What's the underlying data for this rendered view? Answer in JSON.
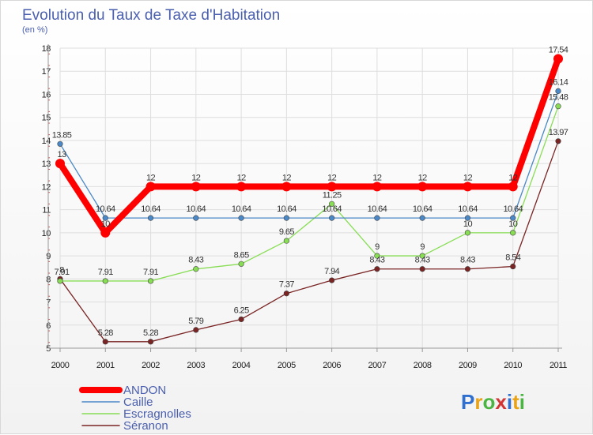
{
  "chart_data": {
    "type": "line",
    "title": "Evolution du Taux de Taxe d'Habitation",
    "subtitle": "(en %)",
    "xlabel": "",
    "ylabel": "",
    "ylim": [
      5,
      18
    ],
    "grid": true,
    "legend_position": "bottom-left",
    "categories": [
      "2000",
      "2001",
      "2002",
      "2003",
      "2004",
      "2005",
      "2006",
      "2007",
      "2008",
      "2009",
      "2010",
      "2011"
    ],
    "yticks": [
      "5",
      "6",
      "7",
      "8",
      "9",
      "10",
      "11",
      "12",
      "13",
      "14",
      "15",
      "16",
      "17",
      "18"
    ],
    "series": [
      {
        "name": "ANDON",
        "color": "#ff0000",
        "values": [
          13,
          10,
          12,
          12,
          12,
          12,
          12,
          12,
          12,
          12,
          12,
          17.54
        ],
        "labels": [
          "13",
          "10",
          "12",
          "12",
          "12",
          "12",
          "12",
          "12",
          "12",
          "12",
          "12",
          "17.54"
        ]
      },
      {
        "name": "Caille",
        "color": "#4a88c7",
        "values": [
          13.85,
          10.64,
          10.64,
          10.64,
          10.64,
          10.64,
          10.64,
          10.64,
          10.64,
          10.64,
          10.64,
          16.14
        ],
        "labels": [
          "13.85",
          "10.64",
          "10.64",
          "10.64",
          "10.64",
          "10.64",
          "10.64",
          "10.64",
          "10.64",
          "10.64",
          "10.64",
          "16.14"
        ]
      },
      {
        "name": "Escragnolles",
        "color": "#88dd55",
        "values": [
          7.91,
          7.91,
          7.91,
          8.43,
          8.65,
          9.65,
          11.25,
          9,
          9,
          10,
          10,
          15.48
        ],
        "labels": [
          "7.91",
          "7.91",
          "7.91",
          "8.43",
          "8.65",
          "9.65",
          "11.25",
          "9",
          "9",
          "10",
          "10",
          "15.48"
        ]
      },
      {
        "name": "Séranon",
        "color": "#7a2424",
        "values": [
          8,
          5.28,
          5.28,
          5.79,
          6.25,
          7.37,
          7.94,
          8.43,
          8.43,
          8.43,
          8.54,
          13.97
        ],
        "labels": [
          "8",
          "5.28",
          "5.28",
          "5.79",
          "6.25",
          "7.37",
          "7.94",
          "8.43",
          "8.43",
          "8.43",
          "8.54",
          "13.97"
        ]
      }
    ]
  },
  "brand": {
    "letters": [
      "P",
      "r",
      "o",
      "x",
      "i",
      "t",
      "i"
    ],
    "colors": [
      "#2f6fd0",
      "#e8a317",
      "#4bb543",
      "#d33434",
      "#2f6fd0",
      "#e8a317",
      "#4bb543"
    ]
  }
}
